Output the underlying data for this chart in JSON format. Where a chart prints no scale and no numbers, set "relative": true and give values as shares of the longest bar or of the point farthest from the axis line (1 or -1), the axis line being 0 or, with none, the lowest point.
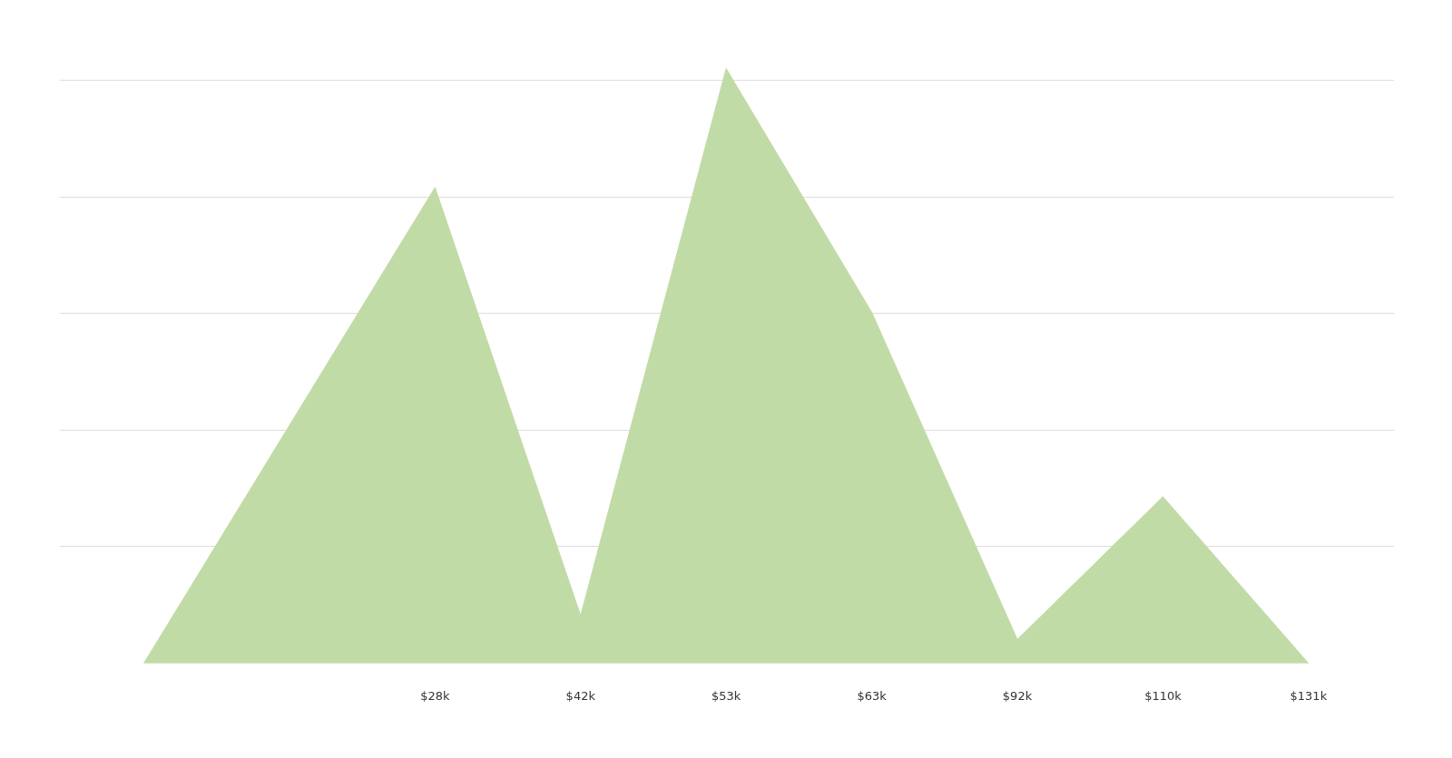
{
  "chart_data": {
    "type": "area",
    "relative": true,
    "grid": "y",
    "categories": [
      null,
      null,
      "$28k",
      "$42k",
      "$53k",
      "$63k",
      "$92k",
      "$110k",
      "$131k"
    ],
    "series": [
      {
        "color": "#c1dba6",
        "values": [
          0,
          0.4,
          0.8,
          0.08,
          1.0,
          0.59,
          0.04,
          0.28,
          0
        ]
      }
    ]
  }
}
